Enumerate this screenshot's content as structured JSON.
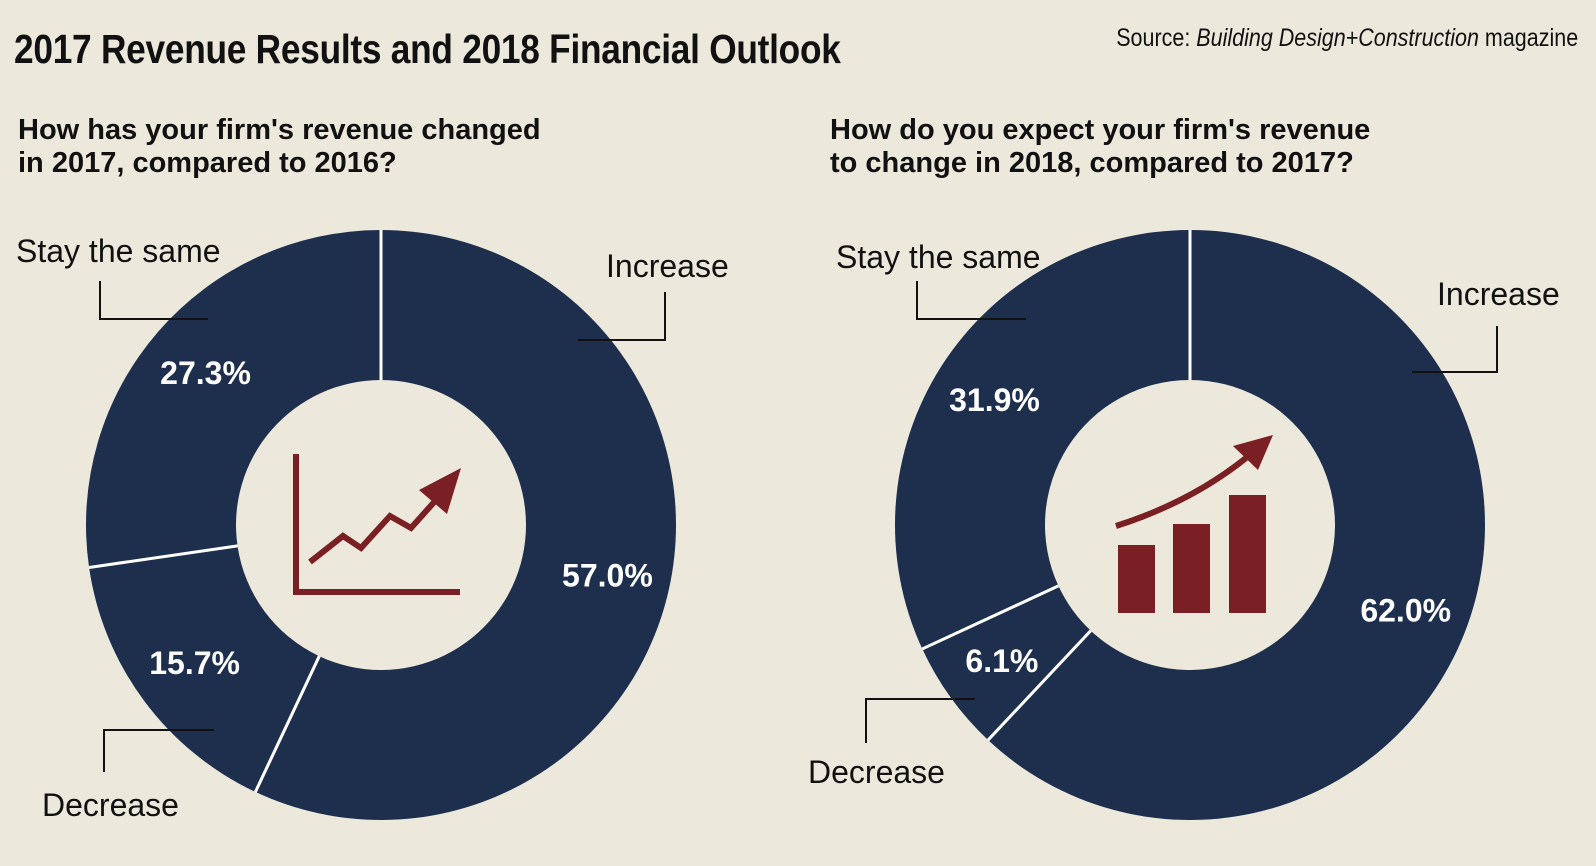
{
  "header": {
    "title": "2017 Revenue Results and 2018 Financial Outlook",
    "source_prefix": "Source:",
    "source_name": "Building Design+Construction",
    "source_suffix": "magazine"
  },
  "colors": {
    "background": "#ece8db",
    "slice": "#1d2f4d",
    "divider": "#ffffff",
    "icon": "#7a1f23",
    "center": "#ece8db"
  },
  "chart_data": [
    {
      "type": "pie",
      "variant": "donut",
      "title": "How has your firm's revenue changed in 2017, compared to 2016?",
      "title_lines": [
        "How has your firm's revenue changed",
        "in 2017, compared to 2016?"
      ],
      "categories": [
        "Increase",
        "Decrease",
        "Stay the same"
      ],
      "values": [
        57.0,
        15.7,
        27.3
      ],
      "value_labels": [
        "57.0%",
        "15.7%",
        "27.3%"
      ],
      "center_icon": "line-chart-up-icon"
    },
    {
      "type": "pie",
      "variant": "donut",
      "title": "How do you expect your firm's revenue to change in 2018, compared to 2017?",
      "title_lines": [
        "How do you expect your firm's revenue",
        "to change in 2018, compared to 2017?"
      ],
      "categories": [
        "Increase",
        "Decrease",
        "Stay the same"
      ],
      "values": [
        62.0,
        6.1,
        31.9
      ],
      "value_labels": [
        "62.0%",
        "6.1%",
        "31.9%"
      ],
      "center_icon": "bar-chart-growth-icon"
    }
  ]
}
